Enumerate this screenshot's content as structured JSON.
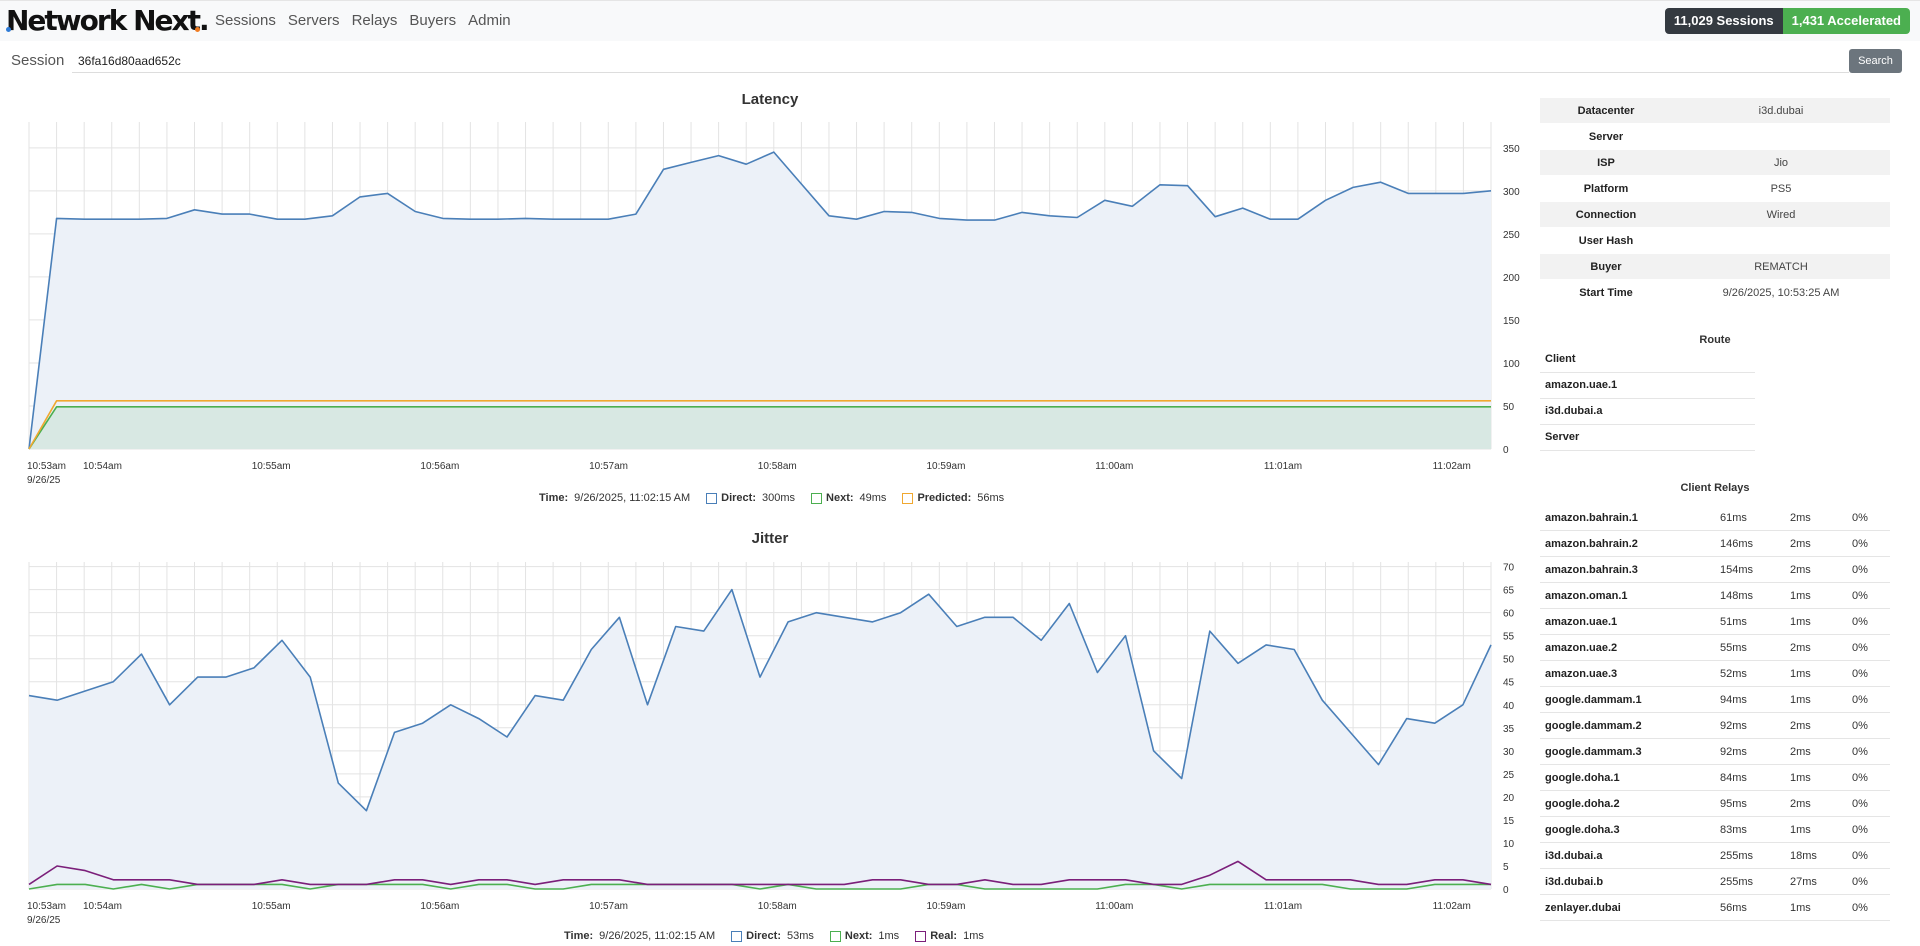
{
  "app": {
    "logo_text": "Network Next.",
    "nav": [
      "Sessions",
      "Servers",
      "Relays",
      "Buyers",
      "Admin"
    ],
    "sessions_badge": "11,029 Sessions",
    "accelerated_badge": "1,431 Accelerated"
  },
  "search": {
    "label": "Session",
    "value": "36fa16d80aad652c",
    "button": "Search"
  },
  "colors": {
    "direct": "#4a7fb8",
    "direct_fill": "#ecf1f8",
    "next": "#4caf50",
    "predicted": "#f0a830",
    "real": "#7b1f7a",
    "badge_dark": "#343a40",
    "badge_green": "#4caf50"
  },
  "charts": {
    "latency_title": "Latency",
    "jitter_title": "Jitter",
    "x_ticks": [
      "10:53am",
      "10:54am",
      "10:55am",
      "10:56am",
      "10:57am",
      "10:58am",
      "10:59am",
      "11:00am",
      "11:01am",
      "11:02am"
    ],
    "x_date": "9/26/25",
    "latency_legend": {
      "time_label": "Time:",
      "time_value": "9/26/2025, 11:02:15 AM",
      "direct_label": "Direct:",
      "direct_value": "300ms",
      "next_label": "Next:",
      "next_value": "49ms",
      "predicted_label": "Predicted:",
      "predicted_value": "56ms"
    },
    "jitter_legend": {
      "time_label": "Time:",
      "time_value": "9/26/2025, 11:02:15 AM",
      "direct_label": "Direct:",
      "direct_value": "53ms",
      "next_label": "Next:",
      "next_value": "1ms",
      "real_label": "Real:",
      "real_value": "1ms"
    }
  },
  "chart_data": [
    {
      "type": "area",
      "title": "Latency",
      "xlabel": "",
      "ylabel": "",
      "x_range": [
        "10:53am",
        "11:02am"
      ],
      "ylim": [
        0,
        380
      ],
      "y_ticks": [
        0,
        50,
        100,
        150,
        200,
        250,
        300,
        350
      ],
      "grid": true,
      "series": [
        {
          "name": "Direct",
          "values": [
            0,
            268,
            267,
            267,
            267,
            268,
            278,
            273,
            273,
            267,
            267,
            271,
            293,
            297,
            276,
            268,
            267,
            267,
            268,
            267,
            267,
            267,
            273,
            325,
            333,
            341,
            331,
            345,
            308,
            271,
            267,
            276,
            275,
            268,
            266,
            266,
            275,
            271,
            269,
            289,
            282,
            307,
            306,
            270,
            280,
            267,
            267,
            289,
            304,
            310,
            297,
            297,
            297,
            300
          ]
        },
        {
          "name": "Next",
          "values": [
            0,
            49,
            49,
            49,
            49,
            49,
            49,
            49,
            49,
            49,
            49,
            49,
            49,
            49,
            49,
            49,
            49,
            49,
            49,
            49,
            49,
            49,
            49,
            49,
            49,
            49,
            49,
            49,
            49,
            49,
            49,
            49,
            49,
            49,
            49,
            49,
            49,
            49,
            49,
            49,
            49,
            49,
            49,
            49,
            49,
            49,
            49,
            49,
            49,
            49,
            49,
            49,
            49,
            49
          ]
        },
        {
          "name": "Predicted",
          "values": [
            0,
            56,
            56,
            56,
            56,
            56,
            56,
            56,
            56,
            56,
            56,
            56,
            56,
            56,
            56,
            56,
            56,
            56,
            56,
            56,
            56,
            56,
            56,
            56,
            56,
            56,
            56,
            56,
            56,
            56,
            56,
            56,
            56,
            56,
            56,
            56,
            56,
            56,
            56,
            56,
            56,
            56,
            56,
            56,
            56,
            56,
            56,
            56,
            56,
            56,
            56,
            56,
            56,
            56
          ]
        }
      ]
    },
    {
      "type": "area",
      "title": "Jitter",
      "xlabel": "",
      "ylabel": "",
      "x_range": [
        "10:53am",
        "11:02am"
      ],
      "ylim": [
        0,
        71
      ],
      "y_ticks": [
        0,
        5,
        10,
        15,
        20,
        25,
        30,
        35,
        40,
        45,
        50,
        55,
        60,
        65,
        70
      ],
      "grid": true,
      "series": [
        {
          "name": "Direct",
          "values": [
            42,
            41,
            43,
            45,
            51,
            40,
            46,
            46,
            48,
            54,
            46,
            23,
            17,
            34,
            36,
            40,
            37,
            33,
            42,
            41,
            52,
            59,
            40,
            57,
            56,
            65,
            46,
            58,
            60,
            59,
            58,
            60,
            64,
            57,
            59,
            59,
            54,
            62,
            47,
            55,
            30,
            24,
            56,
            49,
            53,
            52,
            41,
            34,
            27,
            37,
            36,
            40,
            53
          ]
        },
        {
          "name": "Next",
          "values": [
            0,
            1,
            1,
            0,
            1,
            0,
            1,
            1,
            1,
            1,
            0,
            1,
            1,
            1,
            1,
            0,
            1,
            1,
            0,
            0,
            1,
            1,
            1,
            1,
            1,
            1,
            0,
            1,
            0,
            0,
            0,
            0,
            1,
            1,
            0,
            0,
            0,
            0,
            0,
            1,
            1,
            0,
            1,
            1,
            1,
            1,
            1,
            0,
            0,
            0,
            1,
            1,
            1
          ]
        },
        {
          "name": "Real",
          "values": [
            1,
            5,
            4,
            2,
            2,
            2,
            1,
            1,
            1,
            2,
            1,
            1,
            1,
            2,
            2,
            1,
            2,
            2,
            1,
            2,
            2,
            2,
            1,
            1,
            1,
            1,
            1,
            1,
            1,
            1,
            2,
            2,
            1,
            1,
            2,
            1,
            1,
            2,
            2,
            2,
            1,
            1,
            3,
            6,
            2,
            2,
            2,
            2,
            1,
            1,
            2,
            2,
            1
          ]
        }
      ]
    }
  ],
  "info": [
    {
      "key": "Datacenter",
      "value": "i3d.dubai"
    },
    {
      "key": "Server",
      "value": ""
    },
    {
      "key": "ISP",
      "value": "Jio"
    },
    {
      "key": "Platform",
      "value": "PS5"
    },
    {
      "key": "Connection",
      "value": "Wired"
    },
    {
      "key": "User Hash",
      "value": ""
    },
    {
      "key": "Buyer",
      "value": "REMATCH"
    },
    {
      "key": "Start Time",
      "value": "9/26/2025, 10:53:25 AM"
    }
  ],
  "route": {
    "title": "Route",
    "items": [
      "Client",
      "amazon.uae.1",
      "i3d.dubai.a",
      "Server"
    ]
  },
  "client_relays": {
    "title": "Client Relays",
    "rows": [
      [
        "amazon.bahrain.1",
        "61ms",
        "2ms",
        "0%"
      ],
      [
        "amazon.bahrain.2",
        "146ms",
        "2ms",
        "0%"
      ],
      [
        "amazon.bahrain.3",
        "154ms",
        "2ms",
        "0%"
      ],
      [
        "amazon.oman.1",
        "148ms",
        "1ms",
        "0%"
      ],
      [
        "amazon.uae.1",
        "51ms",
        "1ms",
        "0%"
      ],
      [
        "amazon.uae.2",
        "55ms",
        "2ms",
        "0%"
      ],
      [
        "amazon.uae.3",
        "52ms",
        "1ms",
        "0%"
      ],
      [
        "google.dammam.1",
        "94ms",
        "1ms",
        "0%"
      ],
      [
        "google.dammam.2",
        "92ms",
        "2ms",
        "0%"
      ],
      [
        "google.dammam.3",
        "92ms",
        "2ms",
        "0%"
      ],
      [
        "google.doha.1",
        "84ms",
        "1ms",
        "0%"
      ],
      [
        "google.doha.2",
        "95ms",
        "2ms",
        "0%"
      ],
      [
        "google.doha.3",
        "83ms",
        "1ms",
        "0%"
      ],
      [
        "i3d.dubai.a",
        "255ms",
        "18ms",
        "0%"
      ],
      [
        "i3d.dubai.b",
        "255ms",
        "27ms",
        "0%"
      ],
      [
        "zenlayer.dubai",
        "56ms",
        "1ms",
        "0%"
      ]
    ]
  }
}
